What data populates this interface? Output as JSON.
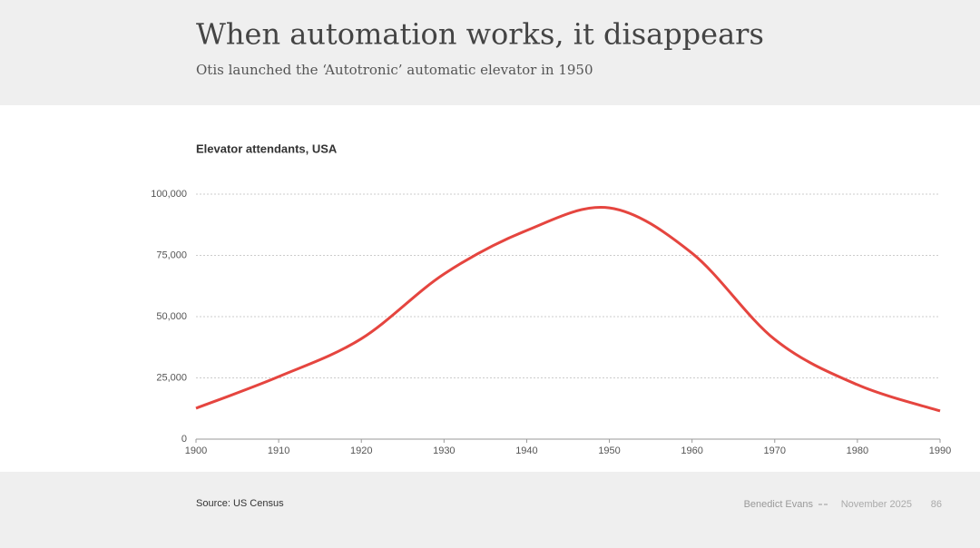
{
  "header": {
    "title": "When automation works, it disappears",
    "subtitle": "Otis launched the ‘Autotronic’ automatic elevator in 1950"
  },
  "chart_data": {
    "type": "line",
    "title": "Elevator attendants, USA",
    "x": [
      1900,
      1910,
      1920,
      1930,
      1940,
      1950,
      1960,
      1970,
      1980,
      1990
    ],
    "series": [
      {
        "name": "Elevator attendants",
        "color": "#e5453f",
        "values": [
          12600,
          25500,
          41000,
          67400,
          85200,
          94400,
          75900,
          40700,
          22200,
          11500
        ]
      }
    ],
    "xlim": [
      1900,
      1990
    ],
    "xticks": [
      1900,
      1910,
      1920,
      1930,
      1940,
      1950,
      1960,
      1970,
      1980,
      1990
    ],
    "ylim": [
      0,
      100000
    ],
    "yticks": [
      0,
      {
        "value": 25000,
        "label": "25,000"
      },
      {
        "value": 50000,
        "label": "50,000"
      },
      {
        "value": 75000,
        "label": "75,000"
      },
      {
        "value": 100000,
        "label": "100,000"
      }
    ],
    "grid": true
  },
  "footer": {
    "source": "Source: US Census",
    "author": "Benedict Evans",
    "date": "November 2025",
    "page": "86"
  }
}
